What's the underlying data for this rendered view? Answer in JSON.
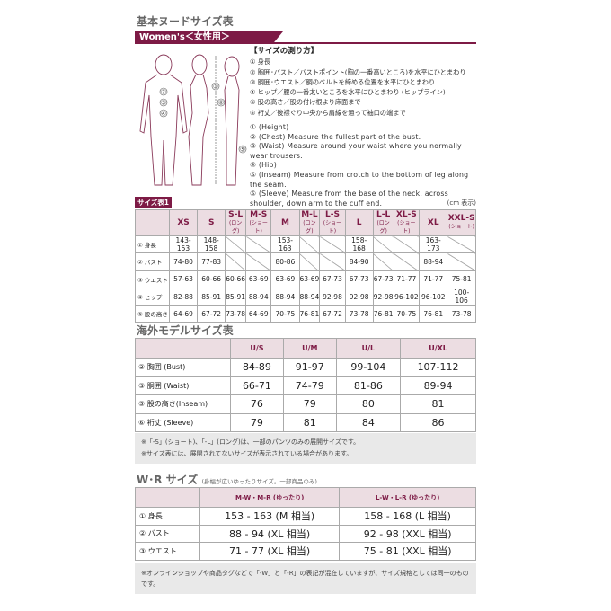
{
  "title": "基本ヌードサイズ表",
  "banner": "Women's＜女性用＞",
  "howto": {
    "heading": "【サイズの測り方】",
    "jp": [
      "① 身長",
      "② 胸囲･バスト／バストポイント(胸の一番高いところ)を水平にひとまわり",
      "③ 胴囲･ウエスト／胴のベルトを締める位置を水平にひとまわり",
      "④ ヒップ／腰の一番太いところを水平にひとまわり (ヒップライン)",
      "⑤ 股の高さ／股の付け根より床面まで",
      "⑥ 裄丈／後襟ぐり中央から肩線を通って袖口の端まで"
    ],
    "en": [
      "① (Height)",
      "② (Chest) Measure the fullest part of the bust.",
      "③ (Waist) Measure around your waist where you normally wear trousers.",
      "④ (Hip)",
      "⑤ (Inseam) Measure from crotch to the bottom of leg along the seam.",
      "⑥ (Sleeve) Measure from the base of the neck, across shoulder, down arm to the cuff end."
    ]
  },
  "figure_labels": [
    "①",
    "②",
    "③",
    "④",
    "⑤",
    "⑥"
  ],
  "table1": {
    "tag": "サイズ表1",
    "unit": "(cm 表示)",
    "headers": [
      {
        "s": "XS",
        "sub": ""
      },
      {
        "s": "S",
        "sub": ""
      },
      {
        "s": "S-L",
        "sub": "(ロング)"
      },
      {
        "s": "M-S",
        "sub": "(ショート)"
      },
      {
        "s": "M",
        "sub": ""
      },
      {
        "s": "M-L",
        "sub": "(ロング)"
      },
      {
        "s": "L-S",
        "sub": "(ショート)"
      },
      {
        "s": "L",
        "sub": ""
      },
      {
        "s": "L-L",
        "sub": "(ロング)"
      },
      {
        "s": "XL-S",
        "sub": "(ショート)"
      },
      {
        "s": "XL",
        "sub": ""
      },
      {
        "s": "XXL-S",
        "sub": "(ショート)"
      }
    ],
    "rows": [
      {
        "label": "① 身長",
        "cells": [
          "143-153",
          "148-158",
          "",
          "",
          "153-163",
          "",
          "",
          "158-168",
          "",
          "",
          "163-173",
          ""
        ]
      },
      {
        "label": "② バスト",
        "cells": [
          "74-80",
          "77-83",
          "",
          "",
          "80-86",
          "",
          "",
          "84-90",
          "",
          "",
          "88-94",
          ""
        ]
      },
      {
        "label": "③ ウエスト",
        "cells": [
          "57-63",
          "60-66",
          "60-66",
          "63-69",
          "63-69",
          "63-69",
          "67-73",
          "67-73",
          "67-73",
          "71-77",
          "71-77",
          "75-81"
        ]
      },
      {
        "label": "④ ヒップ",
        "cells": [
          "82-88",
          "85-91",
          "85-91",
          "88-94",
          "88-94",
          "88-94",
          "92-98",
          "92-98",
          "92-98",
          "96-102",
          "96-102",
          "100-106"
        ]
      },
      {
        "label": "⑤ 股の高さ",
        "cells": [
          "64-69",
          "67-72",
          "73-78",
          "64-69",
          "70-75",
          "76-81",
          "67-72",
          "73-78",
          "76-81",
          "70-75",
          "76-81",
          "73-78"
        ]
      }
    ]
  },
  "table2": {
    "title": "海外モデルサイズ表",
    "headers": [
      "U/S",
      "U/M",
      "U/L",
      "U/XL"
    ],
    "rows": [
      {
        "label": "② 胸囲 (Bust)",
        "cells": [
          "84-89",
          "91-97",
          "99-104",
          "107-112"
        ]
      },
      {
        "label": "③ 胴囲 (Waist)",
        "cells": [
          "66-71",
          "74-79",
          "81-86",
          "89-94"
        ]
      },
      {
        "label": "⑤ 股の高さ(Inseam)",
        "cells": [
          "76",
          "79",
          "80",
          "81"
        ]
      },
      {
        "label": "⑥ 裄丈 (Sleeve)",
        "cells": [
          "79",
          "81",
          "84",
          "86"
        ]
      }
    ],
    "notes": [
      "※「-S」(ショート)､「-L」(ロング)は、一部のパンツのみの展開サイズです。",
      "※サイズ表には、展開されてないサイズが表示されている場合があります。"
    ]
  },
  "table3": {
    "title": "W･R サイズ",
    "subtitle": "(身幅が広いゆったりサイズ。一部商品のみ)",
    "headers": [
      "M-W・M-R (ゆったり)",
      "L-W・L-R (ゆったり)"
    ],
    "rows": [
      {
        "label": "① 身長",
        "cells": [
          "153 - 163 (M 相当)",
          "158 - 168 (L 相当)"
        ]
      },
      {
        "label": "② バスト",
        "cells": [
          "88 - 94 (XL 相当)",
          "92 - 98 (XXL 相当)"
        ]
      },
      {
        "label": "③ ウエスト",
        "cells": [
          "71 - 77 (XL 相当)",
          "75 - 81 (XXL 相当)"
        ]
      }
    ],
    "note": "※オンラインショップや商品タグなどで「-W」と「-R」の表記が混在していますが、サイズ規格としては同一のものです。"
  },
  "colors": {
    "accent": "#7d1a45",
    "header_bg": "#ecdde2",
    "note_bg": "#e9e9e9"
  }
}
